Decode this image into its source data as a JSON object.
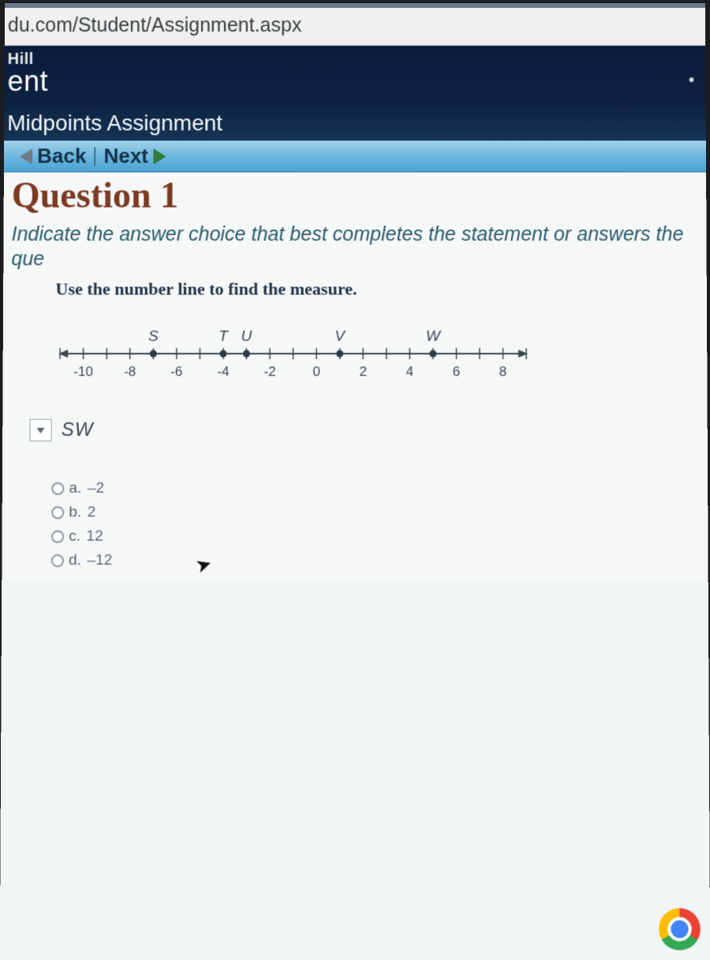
{
  "browser": {
    "url_fragment": "du.com/Student/Assignment.aspx"
  },
  "header": {
    "brand_top": "Hill",
    "brand_main": "ent",
    "assignment_title": "Midpoints Assignment",
    "dot": "•"
  },
  "toolbar": {
    "back_label": "Back",
    "next_label": "Next"
  },
  "question": {
    "title": "Question 1",
    "instruction": "Indicate the answer choice that best completes the statement or answers the que",
    "prompt": "Use the number line to find the measure."
  },
  "number_line": {
    "xmin": -11,
    "xmax": 9,
    "tick_step": 1,
    "label_step": 2,
    "labels": [
      "-10",
      "-8",
      "-6",
      "-4",
      "-2",
      "0",
      "2",
      "4",
      "6",
      "8"
    ],
    "label_x": [
      -10,
      -8,
      -6,
      -4,
      -2,
      0,
      2,
      4,
      6,
      8
    ],
    "points": [
      {
        "name": "S",
        "x": -7
      },
      {
        "name": "T",
        "x": -4
      },
      {
        "name": "U",
        "x": -3
      },
      {
        "name": "V",
        "x": 1
      },
      {
        "name": "W",
        "x": 5
      }
    ],
    "axis_color": "#3a4852",
    "point_fill": "#2a3a46",
    "label_color": "#3a4852",
    "title_font_size": 19,
    "tick_font_size": 17
  },
  "measure": {
    "label": "SW"
  },
  "choices": [
    {
      "letter": "a.",
      "text": "–2"
    },
    {
      "letter": "b.",
      "text": "2"
    },
    {
      "letter": "c.",
      "text": "12"
    },
    {
      "letter": "d.",
      "text": "–12"
    }
  ]
}
